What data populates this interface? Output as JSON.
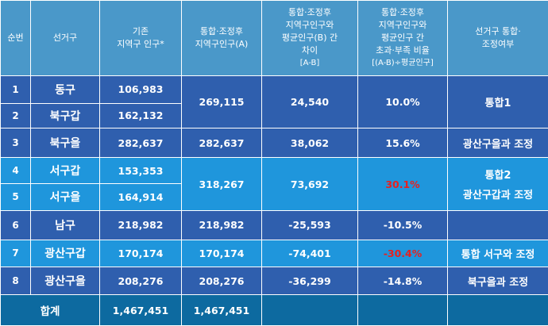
{
  "header": {
    "col_no": "순번",
    "col_district": "선거구",
    "col_pop": [
      "기존",
      "지역구 인구*"
    ],
    "col_merged": [
      "통합·조정후",
      "지역구인구(A)"
    ],
    "col_diff": [
      "통합·조정후",
      "지역구인구와",
      "평균인구(B) 간",
      "차이",
      "[A-B]"
    ],
    "col_ratio": [
      "통합·조정후",
      "지역구인구와",
      "평균인구 간",
      "초과·부족 비율",
      "[(A-B)÷평균인구]"
    ],
    "col_change": [
      "선거구 통합·",
      "조정여부"
    ]
  },
  "rows": [
    {
      "no": "1",
      "district": "동구",
      "pop": "106,983"
    },
    {
      "no": "2",
      "district": "북구갑",
      "pop": "162,132"
    },
    {
      "no": "3",
      "district": "북구을",
      "pop": "282,637",
      "merged": "282,637",
      "diff": "38,062",
      "ratio": "15.6%",
      "change": "광산구을과 조정"
    },
    {
      "no": "4",
      "district": "서구갑",
      "pop": "153,353"
    },
    {
      "no": "5",
      "district": "서구을",
      "pop": "164,914"
    },
    {
      "no": "6",
      "district": "남구",
      "pop": "218,982",
      "merged": "218,982",
      "diff": "-25,593",
      "ratio": "-10.5%",
      "change": ""
    },
    {
      "no": "7",
      "district": "광산구갑",
      "pop": "170,174",
      "merged": "170,174",
      "diff": "-74,401",
      "ratio": "-30.4%",
      "change": "통합 서구와 조정"
    },
    {
      "no": "8",
      "district": "광산구을",
      "pop": "208,276",
      "merged": "208,276",
      "diff": "-36,299",
      "ratio": "-14.8%",
      "change": "북구을과 조정"
    }
  ],
  "group_a": {
    "merged": "269,115",
    "diff": "24,540",
    "ratio": "10.0%",
    "change": "통합1"
  },
  "group_b": {
    "merged": "318,267",
    "diff": "73,692",
    "ratio": "30.1%",
    "change": [
      "통합2",
      "광산구갑과 조정"
    ]
  },
  "total": {
    "label": "합계",
    "pop": "1,467,451",
    "merged": "1,467,451"
  },
  "colors": {
    "header": "#4a98c9",
    "dark_row": "#2f5fae",
    "light_row": "#1f96dc",
    "total_row": "#0d6aa0",
    "alert_text": "#e8201e"
  }
}
